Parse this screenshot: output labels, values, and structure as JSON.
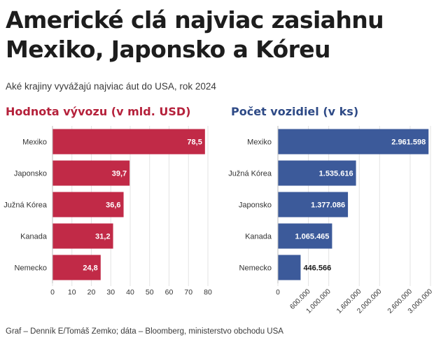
{
  "title": "Americké clá najviac zasiahnu Mexiko, Japonsko a Kóreu",
  "subtitle": "Aké krajiny vyvážajú najviac áut do USA, rok 2024",
  "source": "Graf – Denník E/Tomáš Zemko; dáta – Bloomberg, ministerstvo obchodu USA",
  "chart_data": [
    {
      "type": "bar",
      "orientation": "horizontal",
      "title": "Hodnota vývozu (v mld. USD)",
      "categories": [
        "Mexiko",
        "Japonsko",
        "Južná Kórea",
        "Kanada",
        "Nemecko"
      ],
      "values": [
        78.5,
        39.7,
        36.6,
        31.2,
        24.8
      ],
      "value_labels": [
        "78,5",
        "39,7",
        "36,6",
        "31,2",
        "24,8"
      ],
      "xlim": [
        0,
        80
      ],
      "ticks": [
        0,
        10,
        20,
        30,
        40,
        50,
        60,
        70,
        80
      ],
      "tick_labels": [
        "0",
        "10",
        "20",
        "30",
        "40",
        "50",
        "60",
        "70",
        "80"
      ],
      "color": "#c12a47",
      "grid": true
    },
    {
      "type": "bar",
      "orientation": "horizontal",
      "title": "Počet vozidiel (v ks)",
      "categories": [
        "Mexiko",
        "Južná Kórea",
        "Japonsko",
        "Kanada",
        "Nemecko"
      ],
      "values": [
        2961598,
        1535616,
        1377086,
        1065465,
        446566
      ],
      "value_labels": [
        "2.961.598",
        "1.535.616",
        "1.377.086",
        "1.065.465",
        "446.566"
      ],
      "xlim": [
        0,
        3000000
      ],
      "ticks": [
        0,
        600000,
        1000000,
        1600000,
        2000000,
        2600000,
        3000000
      ],
      "tick_labels": [
        "0",
        "600.000",
        "1.000.000",
        "1.600.000",
        "2.000.000",
        "2.600.000",
        "3.000.000"
      ],
      "color": "#3c5a9a",
      "grid": true
    }
  ]
}
